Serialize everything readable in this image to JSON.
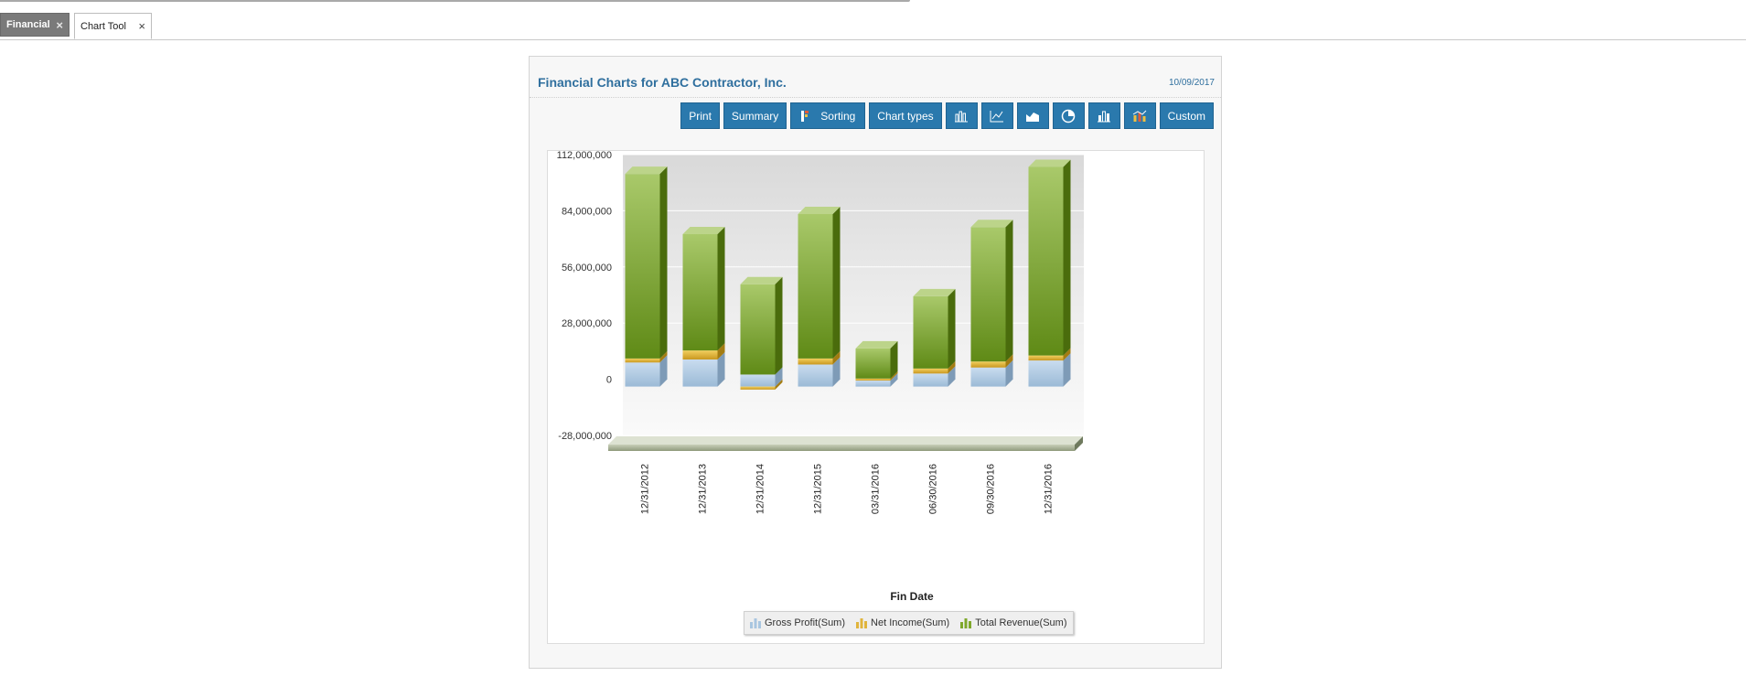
{
  "tabs": [
    {
      "label": "Financial",
      "active": true
    },
    {
      "label": "Chart Tool",
      "active": false
    }
  ],
  "panel": {
    "title": "Financial Charts for ABC Contractor, Inc.",
    "date": "10/09/2017"
  },
  "toolbar": {
    "print": "Print",
    "summary": "Summary",
    "sorting": "Sorting",
    "chart_types": "Chart types",
    "custom": "Custom",
    "icons": [
      "bar-chart-icon",
      "line-chart-icon",
      "area-chart-icon",
      "pie-chart-icon",
      "column-chart-icon",
      "combo-chart-icon"
    ]
  },
  "colors": {
    "button": "#2a79ad",
    "title": "#2f6f9e",
    "gross_profit": "#a9c6e0",
    "net_income": "#e0b43c",
    "total_revenue": "#7ea82b"
  },
  "chart_data": {
    "type": "bar",
    "stacked": true,
    "three_d": true,
    "xlabel": "Fin Date",
    "ylabel": "",
    "ylim": [
      -28000000,
      112000000
    ],
    "yticks": [
      -28000000,
      0,
      28000000,
      56000000,
      84000000,
      112000000
    ],
    "ytick_labels": [
      "-28,000,000",
      "0",
      "28,000,000",
      "56,000,000",
      "84,000,000",
      "112,000,000"
    ],
    "categories": [
      "12/31/2012",
      "12/31/2013",
      "12/31/2014",
      "12/31/2015",
      "03/31/2016",
      "06/30/2016",
      "09/30/2016",
      "12/31/2016"
    ],
    "series": [
      {
        "name": "Gross Profit(Sum)",
        "values": [
          12000000,
          13500000,
          6000000,
          11000000,
          3000000,
          6500000,
          9500000,
          13000000
        ]
      },
      {
        "name": "Net Income(Sum)",
        "values": [
          2000000,
          4500000,
          -1500000,
          3000000,
          1000000,
          2500000,
          3000000,
          2500000
        ]
      },
      {
        "name": "Total Revenue(Sum)",
        "values": [
          92000000,
          58000000,
          45000000,
          72000000,
          15000000,
          36000000,
          67000000,
          94000000
        ]
      }
    ],
    "legend_position": "bottom",
    "grid": true
  }
}
